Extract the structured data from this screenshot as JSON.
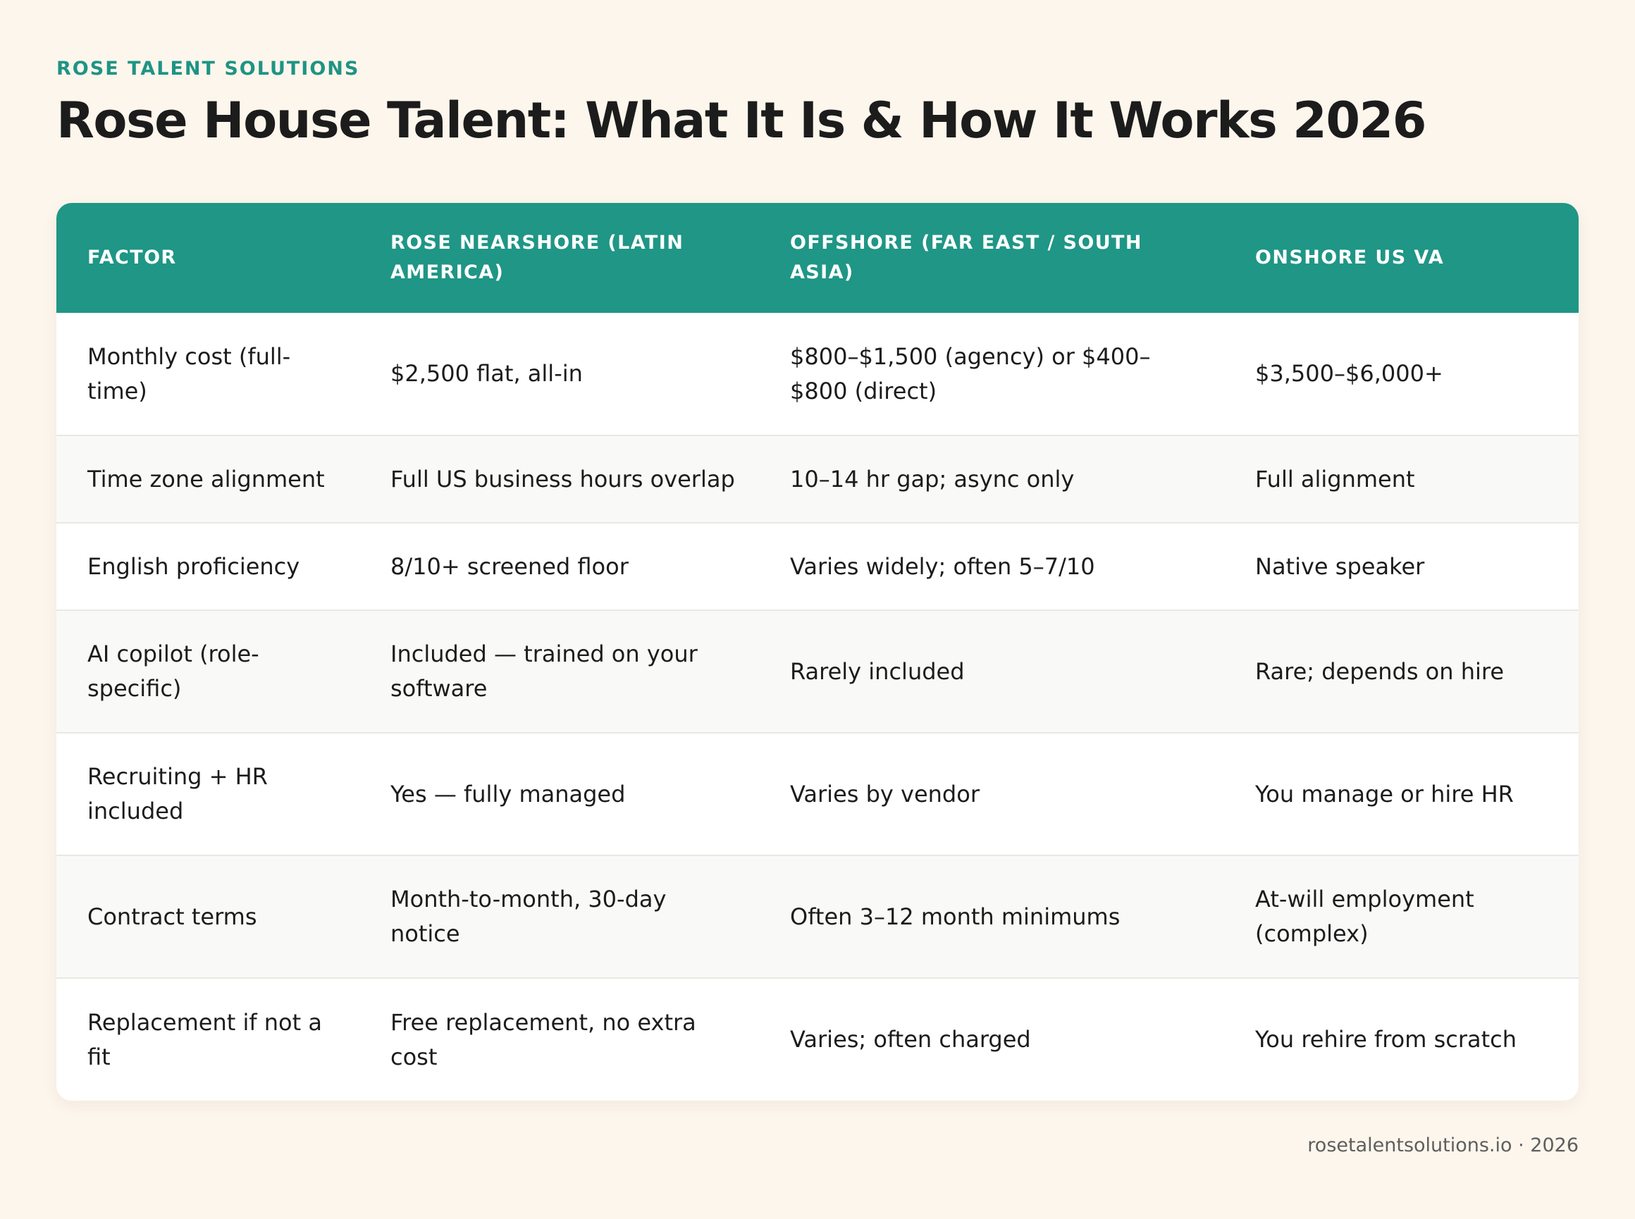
{
  "brand": "ROSE TALENT SOLUTIONS",
  "title": "Rose House Talent: What It Is & How It Works 2026",
  "table": {
    "headers": [
      "FACTOR",
      "ROSE NEARSHORE (LATIN AMERICA)",
      "OFFSHORE (FAR EAST / SOUTH ASIA)",
      "ONSHORE US VA"
    ],
    "rows": [
      [
        "Monthly cost (full-time)",
        "$2,500 flat, all-in",
        "$800–$1,500 (agency) or $400–$800 (direct)",
        "$3,500–$6,000+"
      ],
      [
        "Time zone alignment",
        "Full US business hours overlap",
        "10–14 hr gap; async only",
        "Full alignment"
      ],
      [
        "English proficiency",
        "8/10+ screened floor",
        "Varies widely; often 5–7/10",
        "Native speaker"
      ],
      [
        "AI copilot (role-specific)",
        "Included — trained on your software",
        "Rarely included",
        "Rare; depends on hire"
      ],
      [
        "Recruiting + HR included",
        "Yes — fully managed",
        "Varies by vendor",
        "You manage or hire HR"
      ],
      [
        "Contract terms",
        "Month-to-month, 30-day notice",
        "Often 3–12 month minimums",
        "At-will employment (complex)"
      ],
      [
        "Replacement if not a fit",
        "Free replacement, no extra cost",
        "Varies; often charged",
        "You rehire from scratch"
      ]
    ]
  },
  "footer": "rosetalentsolutions.io · 2026"
}
